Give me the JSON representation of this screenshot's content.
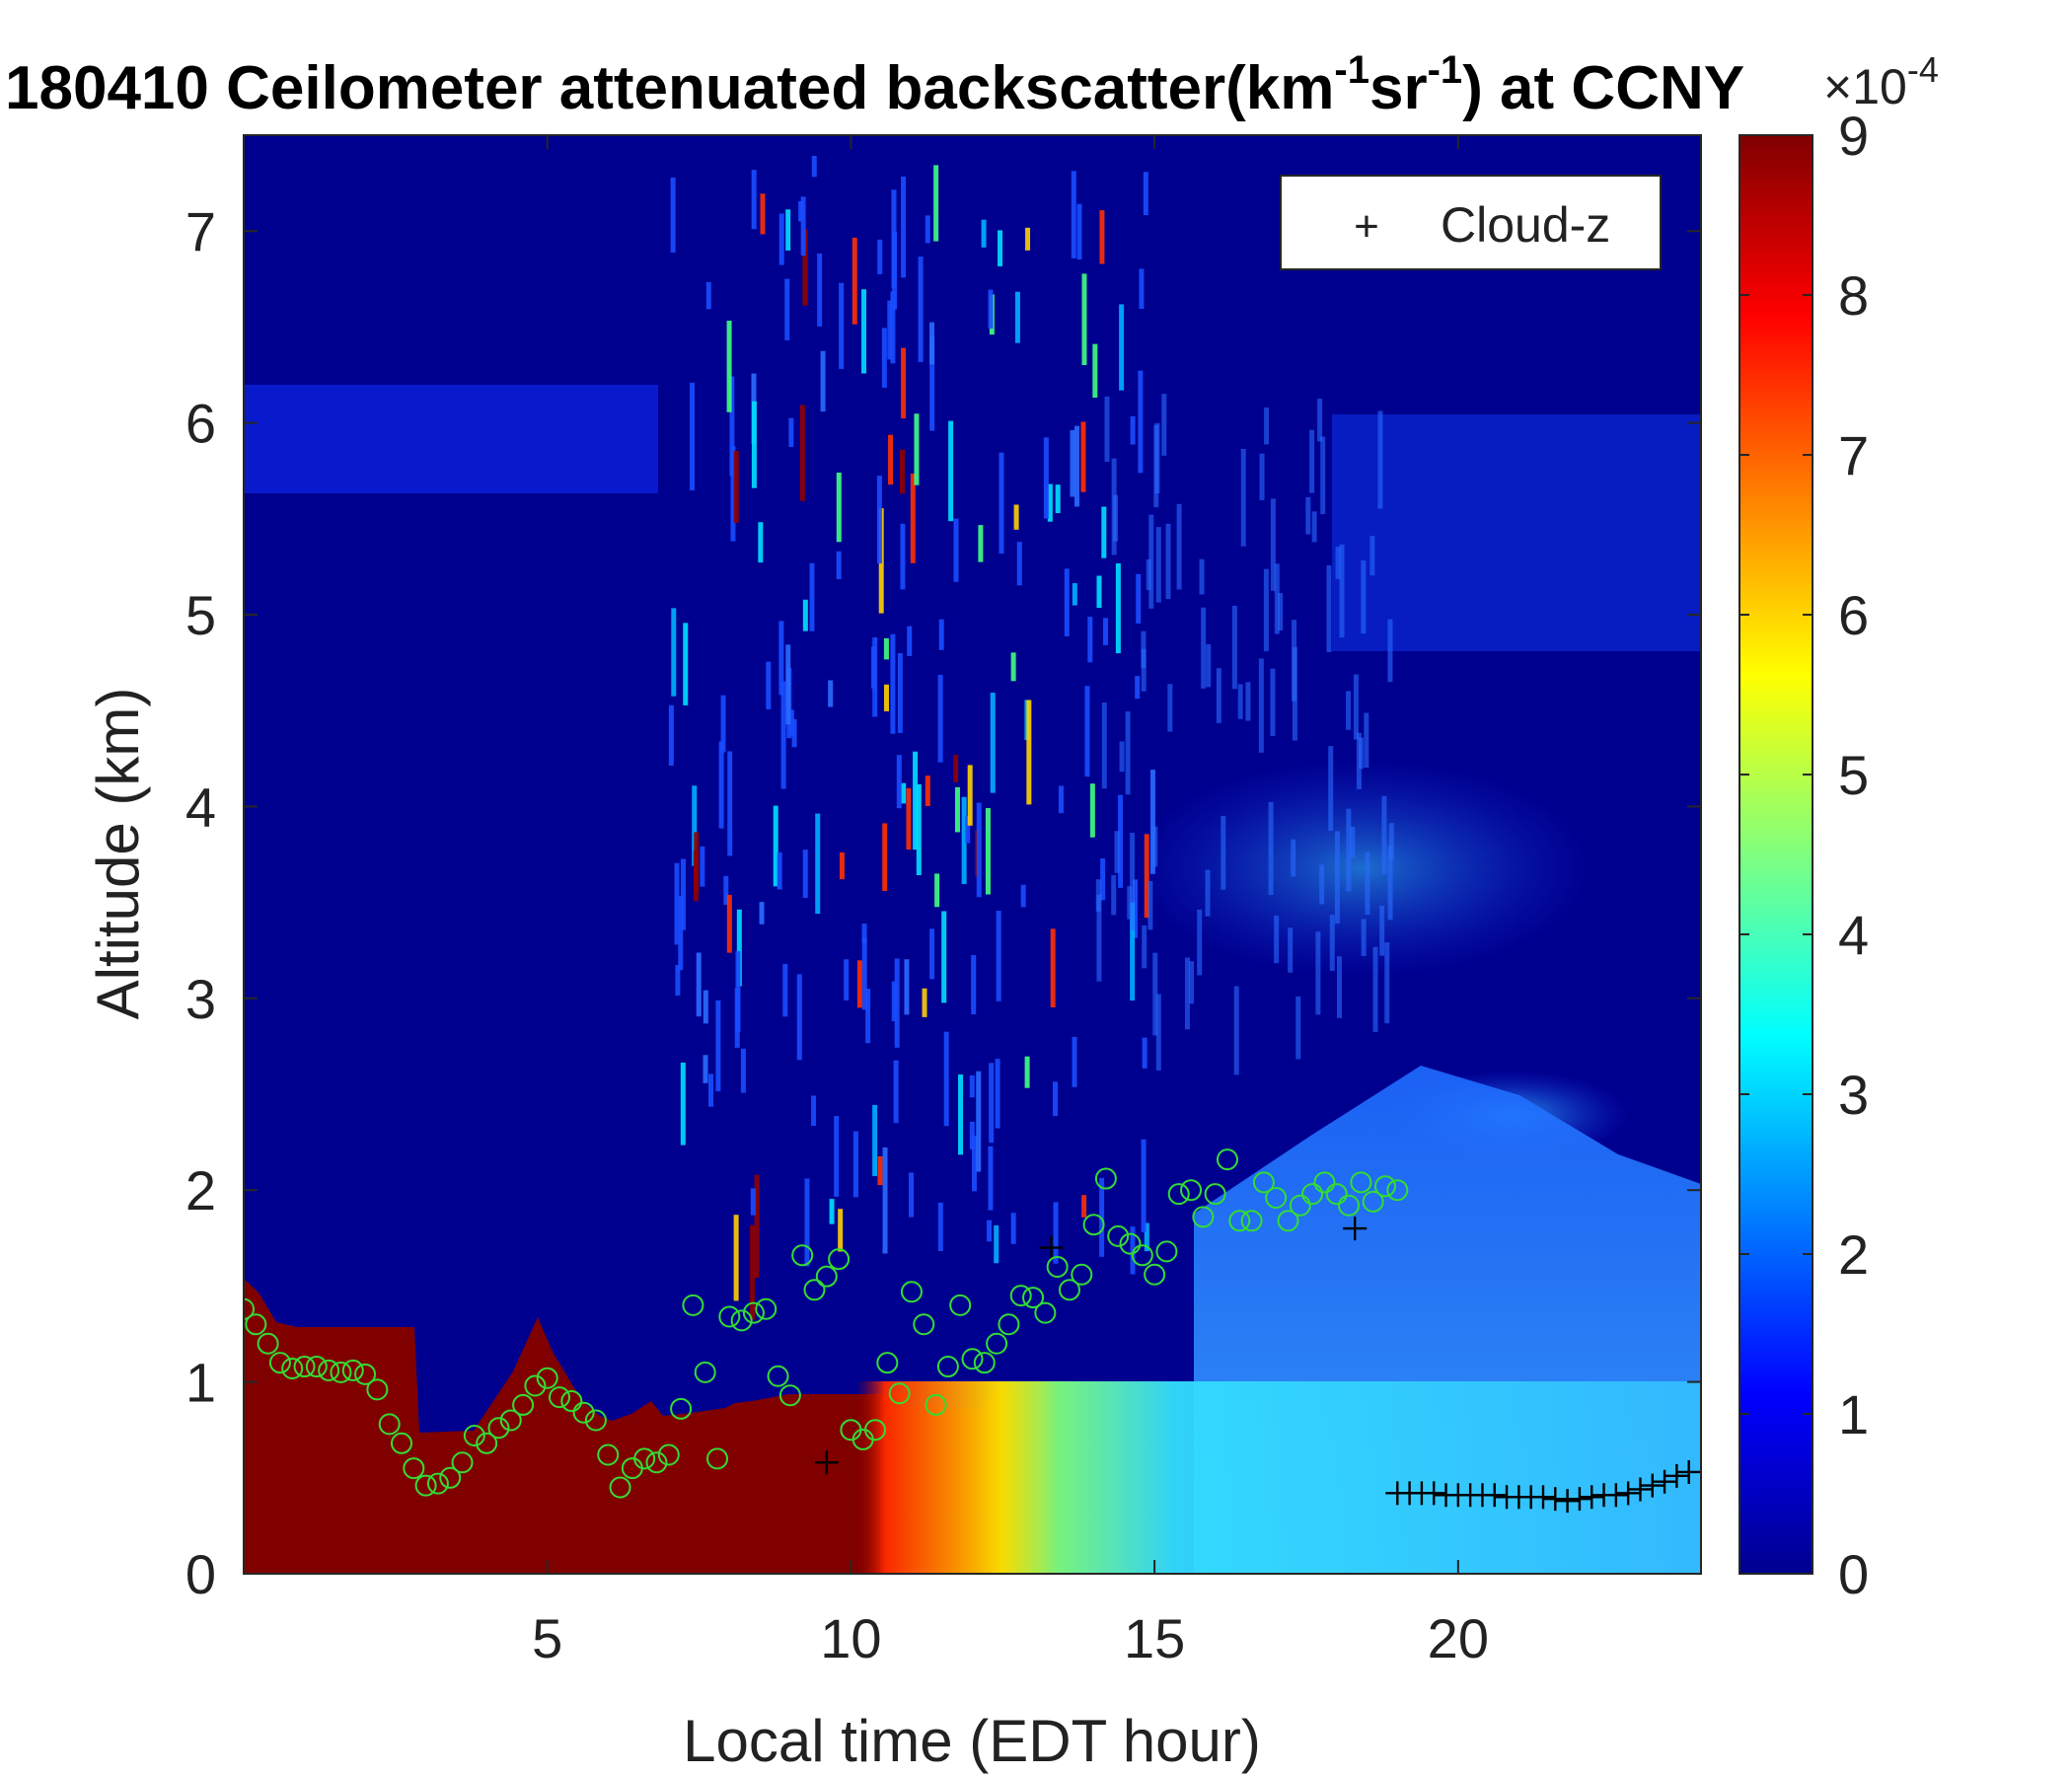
{
  "chart_data": {
    "type": "heatmap",
    "title_prefix": "180410 Ceilometer attenuated backscatter(km",
    "title_sup1": "-1",
    "title_mid": "sr",
    "title_sup2": "-1",
    "title_suffix": ") at CCNY",
    "xlabel": "Local time (EDT hour)",
    "ylabel": "Altitude (km)",
    "xlim": [
      0,
      24
    ],
    "ylim": [
      0,
      7.5
    ],
    "xticks": [
      5,
      10,
      15,
      20
    ],
    "yticks": [
      0,
      1,
      2,
      3,
      4,
      5,
      6,
      7
    ],
    "colorbar": {
      "colormap": "jet",
      "clim": [
        0,
        9
      ],
      "ticks": [
        0,
        1,
        2,
        3,
        4,
        5,
        6,
        7,
        8,
        9
      ],
      "exponent_base": "×10",
      "exponent_power": "-4"
    },
    "legend": {
      "position": "top-right",
      "entries": [
        {
          "marker": "+",
          "label": "Cloud-z"
        }
      ]
    },
    "series": [
      {
        "name": "Cloud-z",
        "marker": "+",
        "color": "#000000",
        "x": [
          9.6,
          13.3,
          18.3,
          19.0,
          19.2,
          19.4,
          19.6,
          19.8,
          20.0,
          20.2,
          20.4,
          20.6,
          20.8,
          21.0,
          21.2,
          21.4,
          21.6,
          21.8,
          22.0,
          22.2,
          22.4,
          22.6,
          22.8,
          23.0,
          23.2,
          23.4,
          23.6,
          23.8
        ],
        "y": [
          0.58,
          1.7,
          1.8,
          0.42,
          0.42,
          0.42,
          0.42,
          0.41,
          0.41,
          0.41,
          0.41,
          0.41,
          0.4,
          0.4,
          0.4,
          0.4,
          0.39,
          0.38,
          0.39,
          0.4,
          0.41,
          0.41,
          0.42,
          0.44,
          0.46,
          0.48,
          0.51,
          0.53
        ]
      },
      {
        "name": "",
        "marker": "o",
        "color": "#33dd33",
        "x": [
          0.0,
          0.2,
          0.4,
          0.6,
          0.8,
          1.0,
          1.2,
          1.4,
          1.6,
          1.8,
          2.0,
          2.2,
          2.4,
          2.6,
          2.8,
          3.0,
          3.2,
          3.4,
          3.6,
          3.8,
          4.0,
          4.2,
          4.4,
          4.6,
          4.8,
          5.0,
          5.2,
          5.4,
          5.6,
          5.8,
          6.0,
          6.2,
          6.4,
          6.6,
          6.8,
          7.0,
          7.2,
          7.4,
          7.6,
          7.8,
          8.0,
          8.2,
          8.4,
          8.6,
          8.8,
          9.0,
          9.2,
          9.4,
          9.6,
          9.8,
          10.0,
          10.2,
          10.4,
          10.6,
          10.8,
          11.0,
          11.2,
          11.4,
          11.6,
          11.8,
          12.0,
          12.2,
          12.4,
          12.6,
          12.8,
          13.0,
          13.2,
          13.4,
          13.6,
          13.8,
          14.0,
          14.2,
          14.4,
          14.6,
          14.8,
          15.0,
          15.2,
          15.4,
          15.6,
          15.8,
          16.0,
          16.2,
          16.4,
          16.6,
          16.8,
          17.0,
          17.2,
          17.4,
          17.6,
          17.8,
          18.0,
          18.2,
          18.4,
          18.6,
          18.8,
          19.0
        ],
        "y": [
          1.38,
          1.3,
          1.2,
          1.1,
          1.07,
          1.08,
          1.08,
          1.06,
          1.05,
          1.06,
          1.04,
          0.96,
          0.78,
          0.68,
          0.55,
          0.46,
          0.47,
          0.5,
          0.58,
          0.72,
          0.68,
          0.76,
          0.8,
          0.88,
          0.98,
          1.02,
          0.92,
          0.9,
          0.84,
          0.8,
          0.62,
          0.45,
          0.55,
          0.6,
          0.58,
          0.62,
          0.86,
          1.4,
          1.05,
          0.6,
          1.34,
          1.32,
          1.36,
          1.38,
          1.03,
          0.93,
          1.66,
          1.48,
          1.55,
          1.64,
          0.75,
          0.7,
          0.75,
          1.1,
          0.94,
          1.47,
          1.3,
          0.88,
          1.08,
          1.4,
          1.12,
          1.1,
          1.2,
          1.3,
          1.45,
          1.44,
          1.36,
          1.6,
          1.48,
          1.56,
          1.82,
          2.06,
          1.76,
          1.72,
          1.66,
          1.56,
          1.68,
          1.98,
          2.0,
          1.86,
          1.98,
          2.16,
          1.84,
          1.84,
          2.04,
          1.96,
          1.84,
          1.92,
          1.98,
          2.04,
          1.98,
          1.92,
          2.04,
          1.94,
          2.02,
          2.0
        ]
      }
    ]
  }
}
